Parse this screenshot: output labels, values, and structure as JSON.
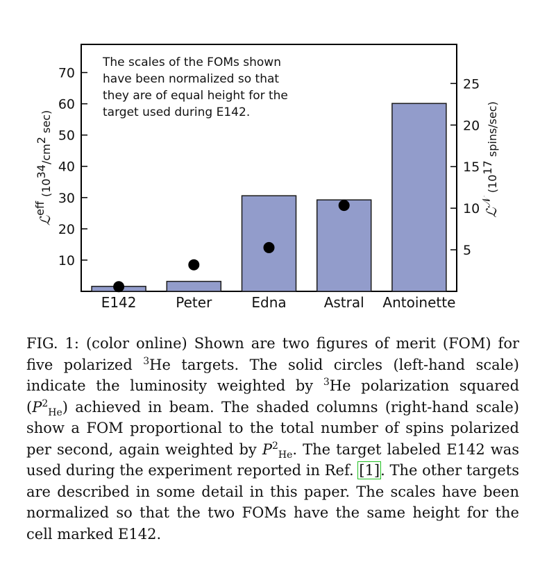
{
  "chart_data": {
    "type": "bar",
    "categories": [
      "E142",
      "Peter",
      "Edna",
      "Astral",
      "Antoinette"
    ],
    "series": [
      {
        "kind": "circles",
        "axis": "left",
        "values": [
          1.5,
          8.5,
          14,
          27.5,
          0
        ]
      },
      {
        "kind": "columns",
        "axis": "right",
        "values": [
          0.6,
          1.2,
          11.5,
          11,
          22.6
        ]
      }
    ],
    "circle_categories": [
      "E142",
      "Peter",
      "Edna",
      "Astral"
    ],
    "circle_values": [
      1.5,
      8.5,
      14,
      27.5
    ],
    "bar_values": [
      0.6,
      1.2,
      11.5,
      11,
      22.6
    ],
    "left_axis": {
      "ylim": [
        0,
        79
      ],
      "ticks": [
        10,
        20,
        30,
        40,
        50,
        60,
        70
      ],
      "label_symbol": "ℒ",
      "label_superscript": "eff",
      "label_units_pre": "(10",
      "label_units_exp": "34",
      "label_units_post": "/cm",
      "label_units_exp2": "2",
      "label_units_end": " sec)"
    },
    "right_axis": {
      "ylim": [
        0,
        29.7
      ],
      "ticks": [
        5,
        10,
        15,
        20,
        25
      ],
      "label_symbol": "ℒ",
      "label_superscript": "𝒩",
      "label_units_pre": "(10",
      "label_units_exp": "17",
      "label_units_post": " spins/sec)"
    },
    "annotation": [
      "The scales of the FOMs shown",
      "have been normalized so that",
      "they are of equal height for the",
      "target used during E142."
    ],
    "colors": {
      "bar_fill": "#929ccb",
      "bar_stroke": "#1a1a1a",
      "circle": "#000000"
    },
    "grid": false
  },
  "caption": {
    "figure_label": "FIG. 1:",
    "part1": " (color online) Shown are two figures of merit (FOM) for five polarized ",
    "sup_3a": "3",
    "part2": "He targets.  The solid circles (left-hand scale) indicate the luminosity weighted by ",
    "sup_3b": "3",
    "part3": "He polarization squared (",
    "p_symbol_1": "P",
    "p_sup_1": "2",
    "p_sub_1": "He",
    "part4": ") achieved in beam. The shaded columns (right-hand scale) show a FOM proportional to the total number of spins polarized per second, again weighted by ",
    "p_symbol_2": "P",
    "p_sup_2": "2",
    "p_sub_2": "He",
    "part5": ".  The target labeled E142 was used during the experiment reported in Ref. ",
    "ref": "[1]",
    "part6": ". The other targets are described in some detail in this paper. The scales have been normalized so that the two FOMs have the same height for the cell marked E142."
  }
}
